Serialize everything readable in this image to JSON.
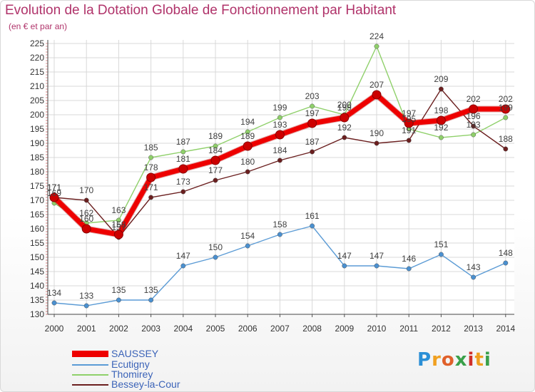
{
  "title": "Evolution de la Dotation Globale de Fonctionnement par Habitant",
  "subtitle": "(en € et par an)",
  "logo": {
    "letters": [
      "P",
      "r",
      "o",
      "x",
      "i",
      "t",
      "i"
    ],
    "colors": [
      "#2b8fd6",
      "#f0a020",
      "#e0602a",
      "#3aa04a",
      "#d0302a",
      "#f0a020",
      "#3aa04a"
    ]
  },
  "chart_data": {
    "type": "line",
    "title": "Evolution de la Dotation Globale de Fonctionnement par Habitant",
    "subtitle": "(en € et par an)",
    "x": [
      2000,
      2001,
      2002,
      2003,
      2004,
      2005,
      2006,
      2007,
      2008,
      2009,
      2010,
      2011,
      2012,
      2013,
      2014
    ],
    "ylim": [
      130,
      225
    ],
    "yticks": [
      130,
      135,
      140,
      145,
      150,
      155,
      160,
      165,
      170,
      175,
      180,
      185,
      190,
      195,
      200,
      205,
      210,
      215,
      220,
      225
    ],
    "grid": true,
    "legend_position": "bottom-left",
    "series": [
      {
        "name": "SAUSSEY",
        "color": "#ee0000",
        "emphasis": true,
        "values": [
          171,
          160,
          158,
          178,
          181,
          184,
          189,
          193,
          197,
          199,
          207,
          197,
          198,
          202,
          202
        ]
      },
      {
        "name": "Ecutigny",
        "color": "#5b9bd5",
        "values": [
          134,
          133,
          135,
          135,
          147,
          150,
          154,
          158,
          161,
          147,
          147,
          146,
          151,
          143,
          148
        ]
      },
      {
        "name": "Thomirey",
        "color": "#8fd06a",
        "values": [
          169,
          162,
          163,
          185,
          187,
          189,
          194,
          199,
          203,
          200,
          224,
          195,
          192,
          193,
          199
        ]
      },
      {
        "name": "Bessey-la-Cour",
        "color": "#6b1f1f",
        "values": [
          171,
          170,
          157,
          171,
          173,
          177,
          180,
          184,
          187,
          192,
          190,
          191,
          209,
          196,
          188
        ]
      }
    ],
    "data_labels": [
      {
        "series": "SAUSSEY",
        "values": [
          "171",
          "160",
          "158",
          "178",
          "181",
          "184",
          "189",
          "193",
          "197",
          "199",
          "207",
          "197",
          "198",
          "202",
          "202"
        ]
      },
      {
        "series": "Ecutigny",
        "values": [
          "134",
          "133",
          "135",
          "135",
          "147",
          "150",
          "154",
          "158",
          "161",
          "147",
          "147",
          "146",
          "151",
          "143",
          "148"
        ]
      },
      {
        "series": "Thomirey",
        "values": [
          "169",
          "162",
          "163",
          "185",
          "187",
          "189",
          "194",
          "199",
          "203",
          "200",
          "224",
          "195",
          "192",
          "193",
          "199"
        ]
      },
      {
        "series": "Bessey-la-Cour",
        "values": [
          "171",
          "170",
          "157",
          "171",
          "173",
          "177",
          "180",
          "184",
          "187",
          "192",
          "190",
          "191",
          "209",
          "196",
          "188"
        ]
      }
    ]
  }
}
